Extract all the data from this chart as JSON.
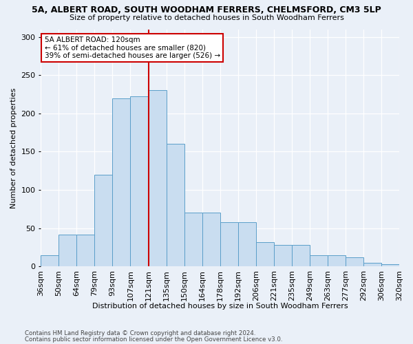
{
  "title_line1": "5A, ALBERT ROAD, SOUTH WOODHAM FERRERS, CHELMSFORD, CM3 5LP",
  "title_line2": "Size of property relative to detached houses in South Woodham Ferrers",
  "xlabel": "Distribution of detached houses by size in South Woodham Ferrers",
  "ylabel": "Number of detached properties",
  "footer_line1": "Contains HM Land Registry data © Crown copyright and database right 2024.",
  "footer_line2": "Contains public sector information licensed under the Open Government Licence v3.0.",
  "bin_labels": [
    "36sqm",
    "50sqm",
    "64sqm",
    "79sqm",
    "93sqm",
    "107sqm",
    "121sqm",
    "135sqm",
    "150sqm",
    "164sqm",
    "178sqm",
    "192sqm",
    "206sqm",
    "221sqm",
    "235sqm",
    "249sqm",
    "263sqm",
    "277sqm",
    "292sqm",
    "306sqm",
    "320sqm"
  ],
  "bar_heights": [
    15,
    42,
    42,
    120,
    220,
    222,
    230,
    160,
    70,
    70,
    58,
    58,
    32,
    28,
    28,
    15,
    15,
    12,
    5,
    3
  ],
  "bar_color": "#c9ddf0",
  "bar_edge_color": "#5a9ec9",
  "background_color": "#eaf0f8",
  "grid_color": "#ffffff",
  "vline_color": "#cc0000",
  "vline_x_index": 6,
  "annotation_text": "5A ALBERT ROAD: 120sqm\n← 61% of detached houses are smaller (820)\n39% of semi-detached houses are larger (526) →",
  "annotation_box_facecolor": "#ffffff",
  "annotation_box_edgecolor": "#cc0000",
  "ylim": [
    0,
    310
  ],
  "yticks": [
    0,
    50,
    100,
    150,
    200,
    250,
    300
  ]
}
